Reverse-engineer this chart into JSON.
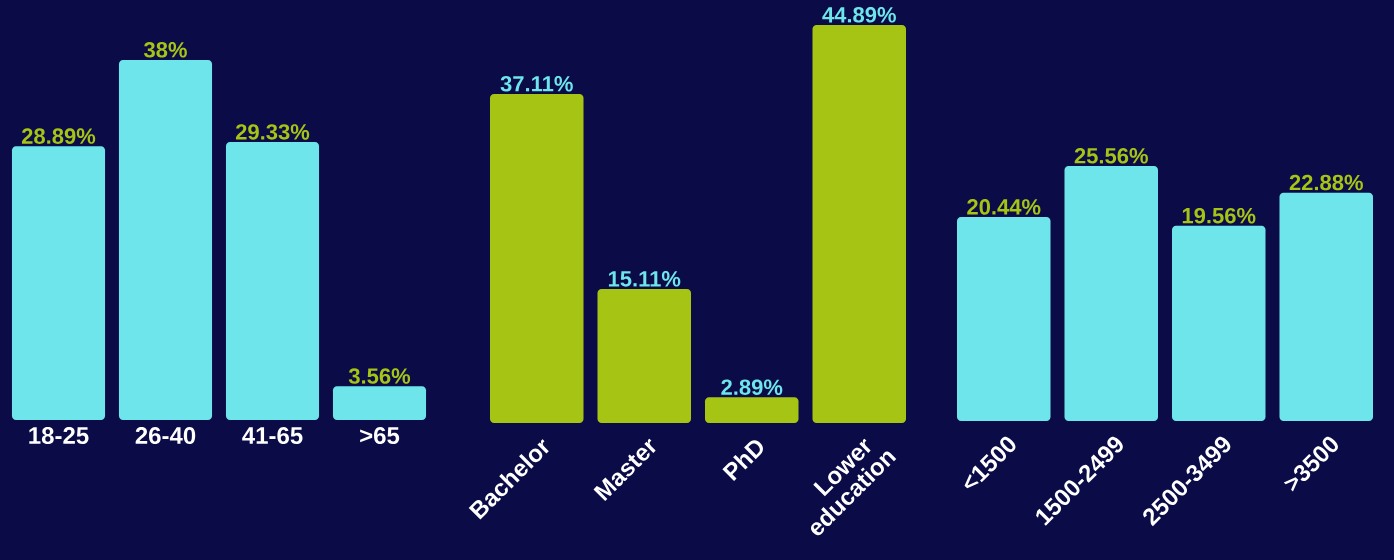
{
  "chart_data": [
    {
      "type": "bar",
      "categories": [
        "18-25",
        "26-40",
        "41-65",
        ">65"
      ],
      "values": [
        28.89,
        38,
        29.33,
        3.56
      ],
      "color": "#6de5ea",
      "value_labels": [
        "28.89%",
        "38%",
        "29.33%",
        "3.56%"
      ]
    },
    {
      "type": "bar",
      "categories": [
        "Bachelor",
        "Master",
        "PhD",
        "Lower education"
      ],
      "values": [
        37.11,
        15.11,
        2.89,
        44.89
      ],
      "color": "#a6c414",
      "value_labels": [
        "37.11%",
        "15.11%",
        "2.89%",
        "44.89%"
      ]
    },
    {
      "type": "bar",
      "categories": [
        "<1500",
        "1500-2499",
        "2500-3499",
        ">3500"
      ],
      "values": [
        20.44,
        25.56,
        19.56,
        22.88
      ],
      "color": "#6de5ea",
      "value_labels": [
        "20.44%",
        "25.56%",
        "19.56%",
        "22.88%"
      ]
    }
  ]
}
